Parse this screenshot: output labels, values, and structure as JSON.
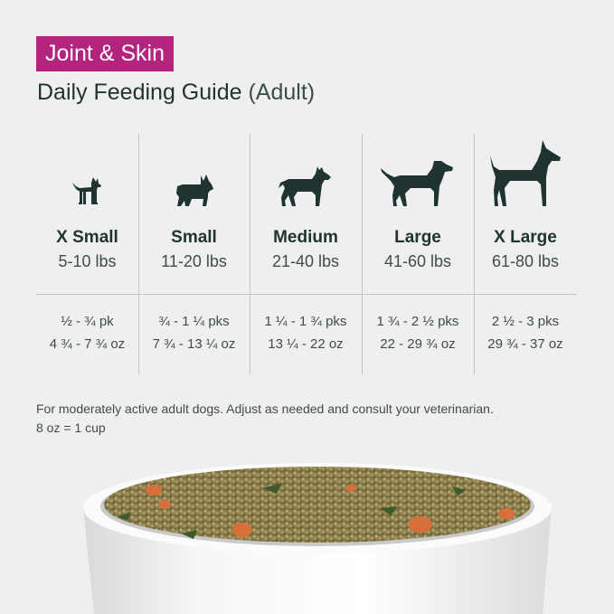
{
  "header": {
    "badge": "Joint & Skin",
    "title": "Daily Feeding Guide",
    "title_suffix": "(Adult)"
  },
  "columns": [
    {
      "icon": "chihuahua-icon",
      "size": "X Small",
      "weight": "5-10 lbs",
      "packs": "½ - ¾ pk",
      "ounces": "4 ¾ - 7 ¾ oz"
    },
    {
      "icon": "french-bulldog-icon",
      "size": "Small",
      "weight": "11-20 lbs",
      "packs": "¾ - 1 ¼ pks",
      "ounces": "7 ¾ - 13 ¼ oz"
    },
    {
      "icon": "pit-bull-icon",
      "size": "Medium",
      "weight": "21-40 lbs",
      "packs": "1 ¼ - 1 ¾ pks",
      "ounces": "13 ¼ - 22 oz"
    },
    {
      "icon": "labrador-icon",
      "size": "Large",
      "weight": "41-60 lbs",
      "packs": "1 ¾ - 2 ½ pks",
      "ounces": "22 - 29 ¾ oz"
    },
    {
      "icon": "great-dane-icon",
      "size": "X Large",
      "weight": "61-80 lbs",
      "packs": "2 ½ - 3 pks",
      "ounces": "29 ¾ - 37 oz"
    }
  ],
  "footnote": {
    "line1": "For moderately active adult dogs. Adjust as needed and consult your veterinarian.",
    "line2": "8 oz = 1 cup"
  },
  "colors": {
    "badge": "#b3247e",
    "text": "#1f3330",
    "icon": "#1f3330",
    "background": "#efefef"
  }
}
